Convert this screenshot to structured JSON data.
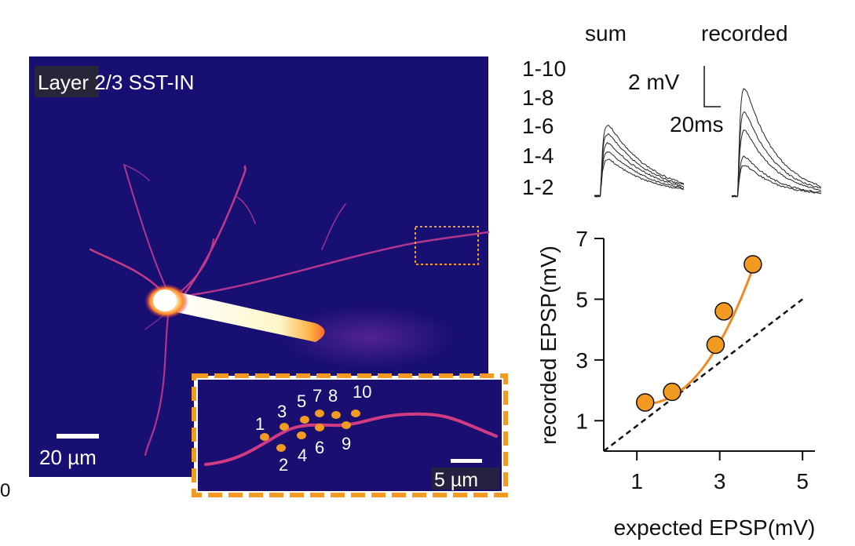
{
  "micrograph": {
    "title": "Layer 2/3 SST-IN",
    "scale_bar_label": "20 µm",
    "stray_tick_label": "0"
  },
  "inset": {
    "scale_bar_label": "5 µm",
    "site_labels": [
      "1",
      "2",
      "3",
      "4",
      "5",
      "6",
      "7",
      "8",
      "9",
      "10"
    ]
  },
  "traces": {
    "sum_label": "sum",
    "recorded_label": "recorded",
    "row_labels": [
      "1-10",
      "1-8",
      "1-6",
      "1-4",
      "1-2"
    ],
    "scale_voltage_label": "2 mV",
    "scale_time_label": "20ms"
  },
  "colors": {
    "marker": "#f39a23",
    "fit": "#ee8a22",
    "image_bg": "#180f73"
  },
  "chart_data": {
    "type": "scatter",
    "xlabel": "expected EPSP(mV)",
    "ylabel": "recorded EPSP(mV)",
    "xlim": [
      0.2,
      5.3
    ],
    "ylim": [
      0,
      7
    ],
    "xticks": [
      1,
      3,
      5
    ],
    "yticks": [
      1,
      3,
      5,
      7
    ],
    "unity_line": true,
    "points": [
      {
        "x": 1.2,
        "y": 1.6
      },
      {
        "x": 1.85,
        "y": 1.95
      },
      {
        "x": 2.9,
        "y": 3.5
      },
      {
        "x": 3.1,
        "y": 4.6
      },
      {
        "x": 3.8,
        "y": 6.15
      }
    ],
    "fit_curve": true
  }
}
